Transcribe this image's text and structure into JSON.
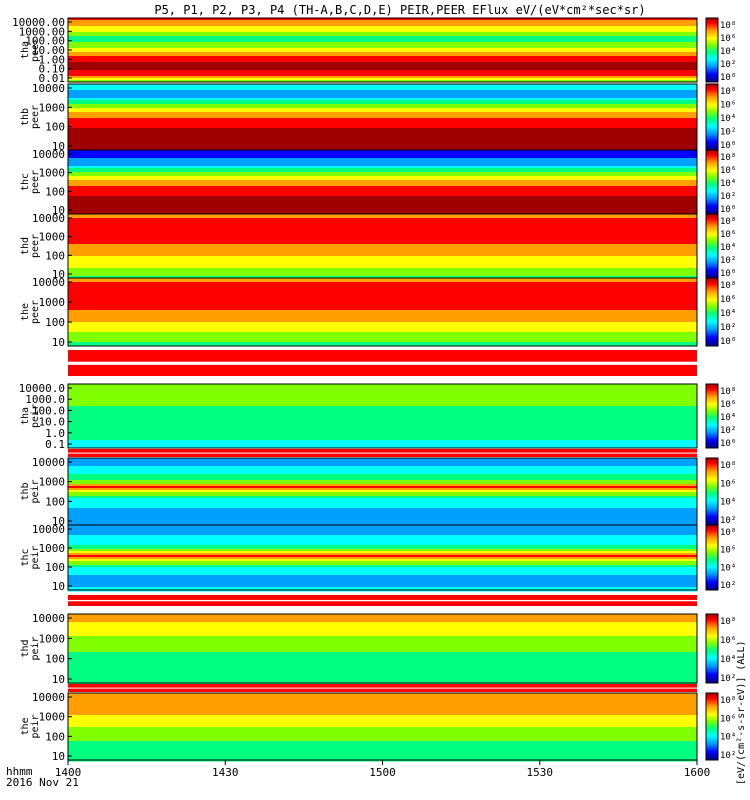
{
  "chart_data": {
    "type": "heatmap",
    "title": "P5, P1, P2, P3, P4 (TH-A,B,C,D,E) PEIR,PEER EFlux eV/(eV*cm²*sec*sr)",
    "x_label_1": "hhmm",
    "x_label_2": "2016 Nov 21",
    "x_ticks": [
      "1400",
      "1430",
      "1500",
      "1530",
      "1600"
    ],
    "colorbar_units": "[eV/(cm²-s-sr-eV)] (ALL)",
    "colormap": [
      "#000080",
      "#0000ff",
      "#00a0ff",
      "#00ffff",
      "#00ff80",
      "#80ff00",
      "#ffff00",
      "#ffa000",
      "#ff0000",
      "#a00000"
    ],
    "panels": [
      {
        "id": "tha_peer",
        "label_1": "tha",
        "label_2": "peer",
        "y_ticks": [
          "10000.00",
          "1000.00",
          "100.00",
          "10.00",
          "1.00",
          "0.10",
          "0.01"
        ],
        "cbar_ticks": [
          "10⁸",
          "10⁶",
          "10⁴",
          "10²",
          "10⁰"
        ]
      },
      {
        "id": "thb_peer",
        "label_1": "thb",
        "label_2": "peer",
        "y_ticks": [
          "10000",
          "1000",
          "100",
          "10"
        ],
        "cbar_ticks": [
          "10⁸",
          "10⁶",
          "10⁴",
          "10²",
          "10⁰"
        ]
      },
      {
        "id": "thc_peer",
        "label_1": "thc",
        "label_2": "peer",
        "y_ticks": [
          "10000",
          "1000",
          "100",
          "10"
        ],
        "cbar_ticks": [
          "10⁸",
          "10⁶",
          "10⁴",
          "10²",
          "10⁰"
        ]
      },
      {
        "id": "thd_peer",
        "label_1": "thd",
        "label_2": "peer",
        "y_ticks": [
          "10000",
          "1000",
          "100",
          "10"
        ],
        "cbar_ticks": [
          "10⁸",
          "10⁶",
          "10⁴",
          "10²",
          "10⁰"
        ]
      },
      {
        "id": "the_peer",
        "label_1": "the",
        "label_2": "peer",
        "y_ticks": [
          "10000",
          "1000",
          "100",
          "10"
        ],
        "cbar_ticks": [
          "10⁸",
          "10⁶",
          "10⁴",
          "10²",
          "10⁰"
        ]
      },
      {
        "id": "tha_peir",
        "label_1": "tha",
        "label_2": "peir",
        "y_ticks": [
          "10000.0",
          "1000.0",
          "100.0",
          "10.0",
          "1.0",
          "0.1"
        ],
        "cbar_ticks": [
          "10⁸",
          "10⁶",
          "10⁴",
          "10²",
          "10⁰"
        ]
      },
      {
        "id": "thb_peir",
        "label_1": "thb",
        "label_2": "peir",
        "y_ticks": [
          "10000",
          "1000",
          "100",
          "10"
        ],
        "cbar_ticks": [
          "10⁸",
          "10⁶",
          "10⁴",
          "10²"
        ]
      },
      {
        "id": "thc_peir",
        "label_1": "thc",
        "label_2": "peir",
        "y_ticks": [
          "10000",
          "1000",
          "100",
          "10"
        ],
        "cbar_ticks": [
          "10⁸",
          "10⁶",
          "10⁴",
          "10²"
        ]
      },
      {
        "id": "thd_peir",
        "label_1": "thd",
        "label_2": "peir",
        "y_ticks": [
          "10000",
          "1000",
          "100",
          "10"
        ],
        "cbar_ticks": [
          "10⁸",
          "10⁶",
          "10⁴",
          "10²"
        ]
      },
      {
        "id": "the_peir",
        "label_1": "the",
        "label_2": "peir",
        "y_ticks": [
          "10000",
          "1000",
          "100",
          "10"
        ],
        "cbar_ticks": [
          "10⁸",
          "10⁶",
          "10⁴",
          "10²"
        ]
      }
    ]
  }
}
